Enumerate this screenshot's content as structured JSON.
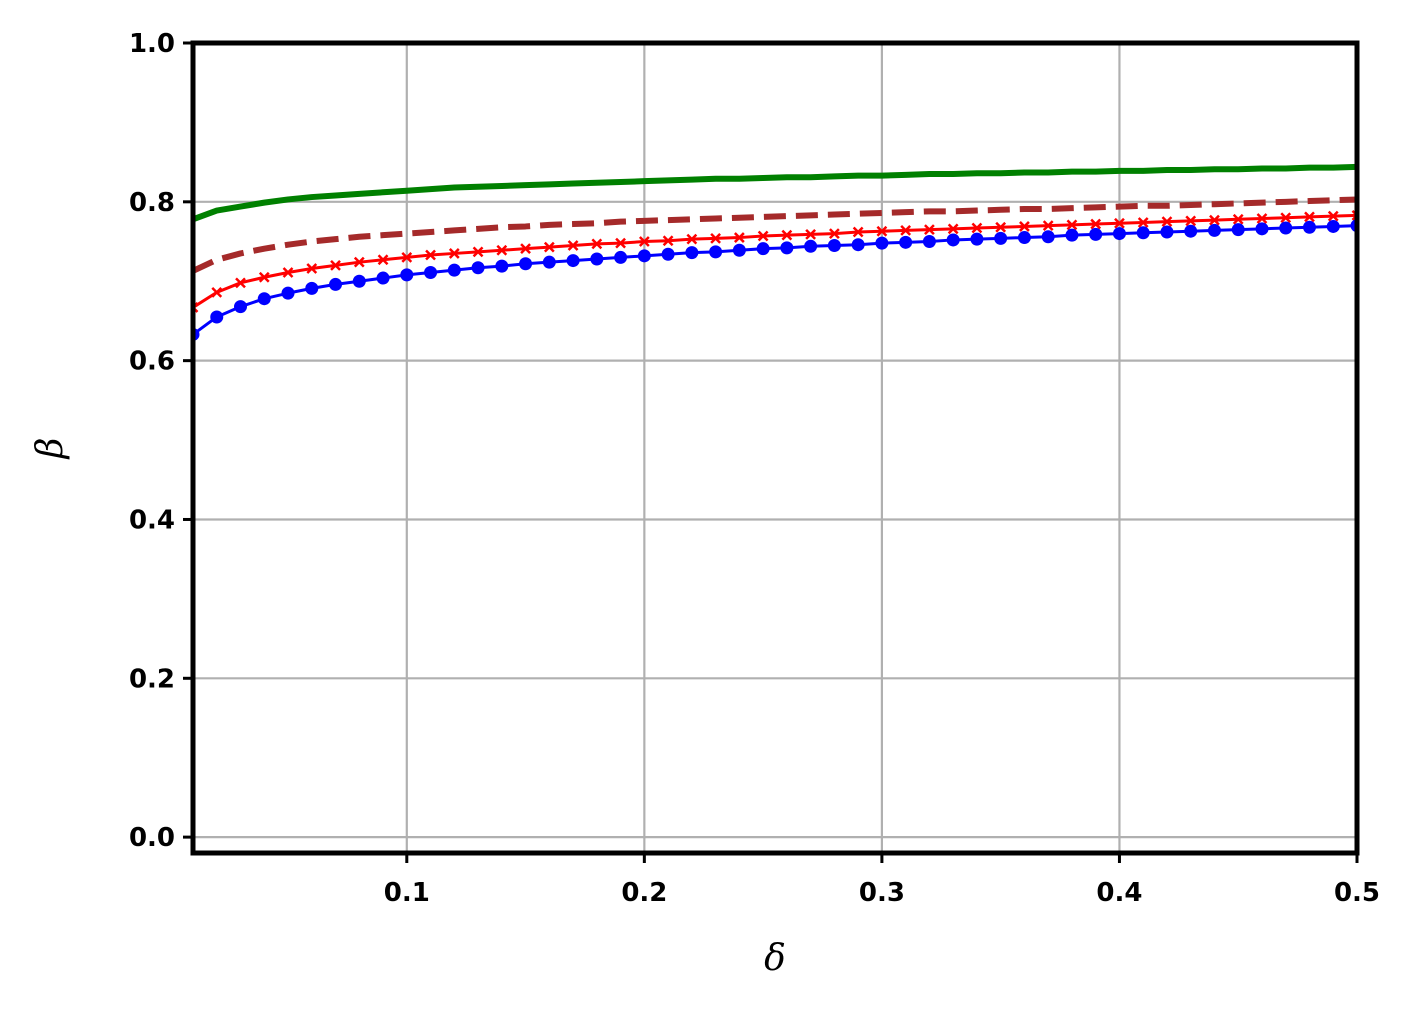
{
  "chart_data": {
    "type": "line",
    "xlabel": "δ",
    "ylabel": "β",
    "xlim": [
      0.01,
      0.5
    ],
    "ylim": [
      -0.02,
      1.0
    ],
    "x_ticks": [
      0.1,
      0.2,
      0.3,
      0.4,
      0.5
    ],
    "x_tick_labels": [
      "0.1",
      "0.2",
      "0.3",
      "0.4",
      "0.5"
    ],
    "y_ticks": [
      0.0,
      0.2,
      0.4,
      0.6,
      0.8,
      1.0
    ],
    "y_tick_labels": [
      "0.0",
      "0.2",
      "0.4",
      "0.6",
      "0.8",
      "1.0"
    ],
    "grid": true,
    "x": [
      0.01,
      0.02,
      0.03,
      0.04,
      0.05,
      0.06,
      0.07,
      0.08,
      0.09,
      0.1,
      0.11,
      0.12,
      0.13,
      0.14,
      0.15,
      0.16,
      0.17,
      0.18,
      0.19,
      0.2,
      0.21,
      0.22,
      0.23,
      0.24,
      0.25,
      0.26,
      0.27,
      0.28,
      0.29,
      0.3,
      0.31,
      0.32,
      0.33,
      0.34,
      0.35,
      0.36,
      0.37,
      0.38,
      0.39,
      0.4,
      0.41,
      0.42,
      0.43,
      0.44,
      0.45,
      0.46,
      0.47,
      0.48,
      0.49,
      0.5
    ],
    "series": [
      {
        "color": "#008000",
        "style": "solid",
        "marker": "none",
        "values": [
          0.778,
          0.789,
          0.794,
          0.799,
          0.803,
          0.806,
          0.808,
          0.81,
          0.812,
          0.814,
          0.816,
          0.818,
          0.819,
          0.82,
          0.821,
          0.822,
          0.823,
          0.824,
          0.825,
          0.826,
          0.827,
          0.828,
          0.829,
          0.829,
          0.83,
          0.831,
          0.831,
          0.832,
          0.833,
          0.833,
          0.834,
          0.835,
          0.835,
          0.836,
          0.836,
          0.837,
          0.837,
          0.838,
          0.838,
          0.839,
          0.839,
          0.84,
          0.84,
          0.841,
          0.841,
          0.842,
          0.842,
          0.843,
          0.843,
          0.844
        ]
      },
      {
        "color": "#a52a2a",
        "style": "dashed",
        "marker": "none",
        "values": [
          0.713,
          0.727,
          0.735,
          0.741,
          0.746,
          0.75,
          0.753,
          0.756,
          0.758,
          0.76,
          0.762,
          0.764,
          0.766,
          0.768,
          0.769,
          0.771,
          0.772,
          0.773,
          0.775,
          0.776,
          0.777,
          0.778,
          0.779,
          0.78,
          0.781,
          0.782,
          0.783,
          0.784,
          0.785,
          0.786,
          0.787,
          0.788,
          0.788,
          0.789,
          0.79,
          0.791,
          0.791,
          0.792,
          0.793,
          0.794,
          0.795,
          0.795,
          0.796,
          0.797,
          0.798,
          0.799,
          0.8,
          0.801,
          0.802,
          0.803
        ]
      },
      {
        "color": "#ff0000",
        "style": "solid",
        "marker": "x",
        "values": [
          0.667,
          0.686,
          0.698,
          0.705,
          0.711,
          0.716,
          0.72,
          0.724,
          0.727,
          0.73,
          0.733,
          0.735,
          0.737,
          0.739,
          0.741,
          0.743,
          0.745,
          0.747,
          0.748,
          0.75,
          0.751,
          0.753,
          0.754,
          0.755,
          0.757,
          0.758,
          0.759,
          0.76,
          0.762,
          0.763,
          0.764,
          0.765,
          0.766,
          0.767,
          0.768,
          0.769,
          0.77,
          0.771,
          0.772,
          0.773,
          0.774,
          0.775,
          0.776,
          0.777,
          0.778,
          0.779,
          0.78,
          0.781,
          0.782,
          0.783
        ]
      },
      {
        "color": "#0000ff",
        "style": "solid",
        "marker": "o",
        "values": [
          0.633,
          0.655,
          0.668,
          0.678,
          0.685,
          0.691,
          0.696,
          0.7,
          0.704,
          0.708,
          0.711,
          0.714,
          0.717,
          0.719,
          0.722,
          0.724,
          0.726,
          0.728,
          0.73,
          0.732,
          0.734,
          0.736,
          0.737,
          0.739,
          0.741,
          0.742,
          0.744,
          0.745,
          0.746,
          0.748,
          0.749,
          0.75,
          0.752,
          0.753,
          0.754,
          0.755,
          0.756,
          0.758,
          0.759,
          0.76,
          0.761,
          0.762,
          0.763,
          0.764,
          0.765,
          0.766,
          0.767,
          0.768,
          0.769,
          0.77
        ]
      }
    ]
  }
}
